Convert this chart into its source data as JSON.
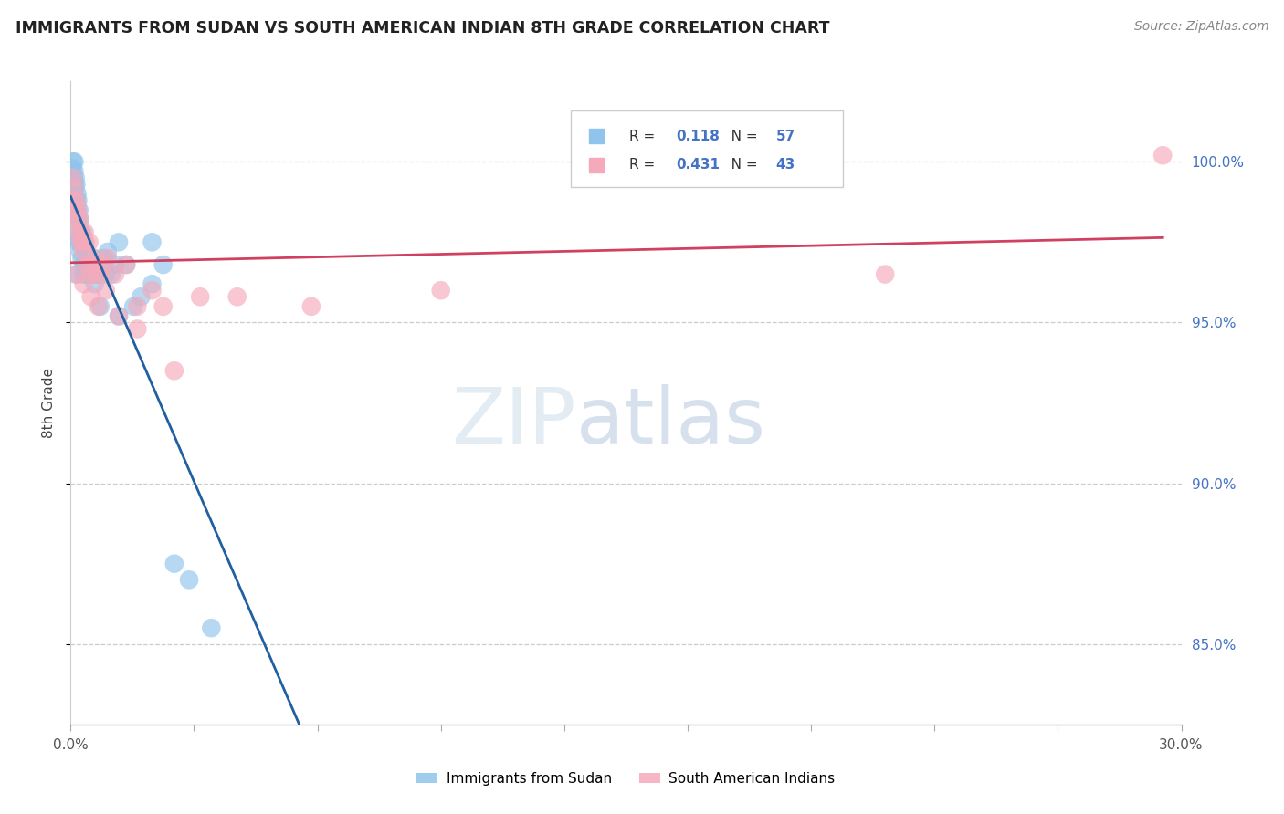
{
  "title": "IMMIGRANTS FROM SUDAN VS SOUTH AMERICAN INDIAN 8TH GRADE CORRELATION CHART",
  "source": "Source: ZipAtlas.com",
  "ylabel": "8th Grade",
  "x_min": 0.0,
  "x_max": 30.0,
  "y_min": 82.5,
  "y_max": 102.5,
  "sudan_R": 0.118,
  "sudan_N": 57,
  "sai_R": 0.431,
  "sai_N": 43,
  "sudan_color": "#90C4EC",
  "sai_color": "#F5AABB",
  "sudan_line_color": "#2060A0",
  "sai_line_color": "#D04060",
  "sudan_x": [
    0.05,
    0.07,
    0.08,
    0.1,
    0.1,
    0.12,
    0.13,
    0.15,
    0.15,
    0.17,
    0.18,
    0.2,
    0.2,
    0.22,
    0.23,
    0.25,
    0.25,
    0.27,
    0.28,
    0.3,
    0.3,
    0.32,
    0.35,
    0.37,
    0.4,
    0.42,
    0.45,
    0.5,
    0.55,
    0.58,
    0.6,
    0.65,
    0.7,
    0.75,
    0.8,
    0.85,
    0.9,
    0.95,
    1.0,
    1.1,
    1.2,
    1.3,
    1.5,
    1.7,
    1.9,
    2.2,
    2.5,
    2.8,
    3.2,
    3.8,
    0.15,
    0.2,
    0.35,
    0.55,
    0.8,
    1.3,
    2.2
  ],
  "sudan_y": [
    99.8,
    100.0,
    99.5,
    99.7,
    100.0,
    99.2,
    99.5,
    98.8,
    99.3,
    98.5,
    99.0,
    98.2,
    98.8,
    97.8,
    98.5,
    97.5,
    98.2,
    97.2,
    97.8,
    97.5,
    97.0,
    97.8,
    96.8,
    97.5,
    96.5,
    97.2,
    96.8,
    96.5,
    96.5,
    96.8,
    97.0,
    96.2,
    96.5,
    96.8,
    96.5,
    96.8,
    97.0,
    96.5,
    97.2,
    96.5,
    96.8,
    97.5,
    96.8,
    95.5,
    95.8,
    97.5,
    96.8,
    87.5,
    87.0,
    85.5,
    96.5,
    97.5,
    96.5,
    96.8,
    95.5,
    95.2,
    96.2
  ],
  "sai_x": [
    0.06,
    0.08,
    0.1,
    0.12,
    0.15,
    0.17,
    0.2,
    0.22,
    0.25,
    0.28,
    0.3,
    0.32,
    0.35,
    0.38,
    0.4,
    0.45,
    0.5,
    0.55,
    0.6,
    0.65,
    0.7,
    0.8,
    0.9,
    1.0,
    1.2,
    1.5,
    1.8,
    2.2,
    2.8,
    3.5,
    0.18,
    0.35,
    0.55,
    0.75,
    0.95,
    1.3,
    1.8,
    2.5,
    4.5,
    6.5,
    10.0,
    22.0,
    29.5
  ],
  "sai_y": [
    99.5,
    98.8,
    99.2,
    98.5,
    98.8,
    98.2,
    98.5,
    97.8,
    98.2,
    97.5,
    97.8,
    97.5,
    97.2,
    97.8,
    97.5,
    96.8,
    97.5,
    96.5,
    96.8,
    97.0,
    96.5,
    96.5,
    96.8,
    97.0,
    96.5,
    96.8,
    95.5,
    96.0,
    93.5,
    95.8,
    96.5,
    96.2,
    95.8,
    95.5,
    96.0,
    95.2,
    94.8,
    95.5,
    95.8,
    95.5,
    96.0,
    96.5,
    100.2
  ],
  "trendline_x_start": 0.0,
  "trendline_x_solid_end": 8.0,
  "trendline_x_dash_end": 29.5,
  "grid_yticks": [
    85.0,
    90.0,
    95.0,
    100.0
  ],
  "right_ytick_labels": [
    "85.0%",
    "90.0%",
    "95.0%",
    "100.0%"
  ],
  "xtick_labels": [
    "0.0%",
    "",
    "",
    "",
    "",
    "",
    "",
    "",
    "",
    "30.0%"
  ],
  "legend_sudan": "Immigrants from Sudan",
  "legend_sai": "South American Indians"
}
